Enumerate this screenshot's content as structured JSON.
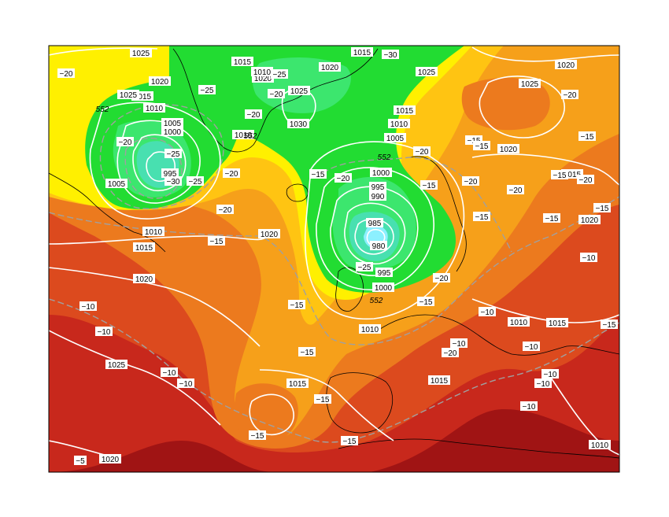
{
  "colors": {
    "dark_red": "#a01414",
    "red": "#c8281c",
    "red_orange": "#dc4a1e",
    "orange": "#ec7a1e",
    "light_orange": "#f6a01a",
    "amber": "#ffc412",
    "yellow": "#fff000",
    "green": "#22dc32",
    "light_green": "#28e05a",
    "cyan_green": "#48e0b0",
    "cyan": "#8cf0ff",
    "isobar": "#ffffff",
    "isotherm": "#a0a0a0",
    "coast": "#000000"
  },
  "isobar_labels": [
    {
      "text": "1025"
    },
    {
      "text": "1020"
    },
    {
      "text": "1015"
    },
    {
      "text": "1010"
    },
    {
      "text": "1005"
    },
    {
      "text": "1000"
    },
    {
      "text": "995"
    },
    {
      "text": "1005"
    },
    {
      "text": "1010"
    },
    {
      "text": "1015"
    },
    {
      "text": "1020"
    },
    {
      "text": "1015"
    },
    {
      "text": "1025"
    },
    {
      "text": "1030"
    },
    {
      "text": "1020"
    },
    {
      "text": "1015"
    },
    {
      "text": "1025"
    },
    {
      "text": "1015"
    },
    {
      "text": "1010"
    },
    {
      "text": "1005"
    },
    {
      "text": "1000"
    },
    {
      "text": "995"
    },
    {
      "text": "990"
    },
    {
      "text": "985"
    },
    {
      "text": "980"
    },
    {
      "text": "995"
    },
    {
      "text": "1000"
    },
    {
      "text": "1010"
    },
    {
      "text": "1020"
    },
    {
      "text": "1025"
    },
    {
      "text": "1020"
    },
    {
      "text": "1015"
    },
    {
      "text": "1020"
    },
    {
      "text": "1015"
    },
    {
      "text": "1010"
    },
    {
      "text": "1015"
    },
    {
      "text": "1015"
    },
    {
      "text": "1010"
    },
    {
      "text": "1025"
    },
    {
      "text": "1020"
    },
    {
      "text": "1025"
    },
    {
      "text": "1020"
    },
    {
      "text": "1010"
    },
    {
      "text": "1010"
    },
    {
      "text": "1020"
    }
  ],
  "isotherm_labels": [
    {
      "text": "−20"
    },
    {
      "text": "−25"
    },
    {
      "text": "−20"
    },
    {
      "text": "−25"
    },
    {
      "text": "−20"
    },
    {
      "text": "−25"
    },
    {
      "text": "−30"
    },
    {
      "text": "−20"
    },
    {
      "text": "−30"
    },
    {
      "text": "−25"
    },
    {
      "text": "−20"
    },
    {
      "text": "−20"
    },
    {
      "text": "−20"
    },
    {
      "text": "−20"
    },
    {
      "text": "−15"
    },
    {
      "text": "−15"
    },
    {
      "text": "−15"
    },
    {
      "text": "−10"
    },
    {
      "text": "−10"
    },
    {
      "text": "−10"
    },
    {
      "text": "−10"
    },
    {
      "text": "−15"
    },
    {
      "text": "−15"
    },
    {
      "text": "−15"
    },
    {
      "text": "−15"
    },
    {
      "text": "−15"
    },
    {
      "text": "−10"
    },
    {
      "text": "−25"
    },
    {
      "text": "−20"
    },
    {
      "text": "−15"
    },
    {
      "text": "−15"
    },
    {
      "text": "−20"
    },
    {
      "text": "−20"
    },
    {
      "text": "−15"
    },
    {
      "text": "−15"
    },
    {
      "text": "−20"
    },
    {
      "text": "−15"
    },
    {
      "text": "−20"
    },
    {
      "text": "−15"
    },
    {
      "text": "−15"
    },
    {
      "text": "−15"
    },
    {
      "text": "−10"
    },
    {
      "text": "−10"
    },
    {
      "text": "−10"
    },
    {
      "text": "−10"
    },
    {
      "text": "−10"
    },
    {
      "text": "−20"
    },
    {
      "text": "−15"
    },
    {
      "text": "−10"
    },
    {
      "text": "−5"
    }
  ],
  "thickness_labels": [
    {
      "text": "552"
    },
    {
      "text": "552"
    },
    {
      "text": "552"
    },
    {
      "text": "552"
    }
  ]
}
